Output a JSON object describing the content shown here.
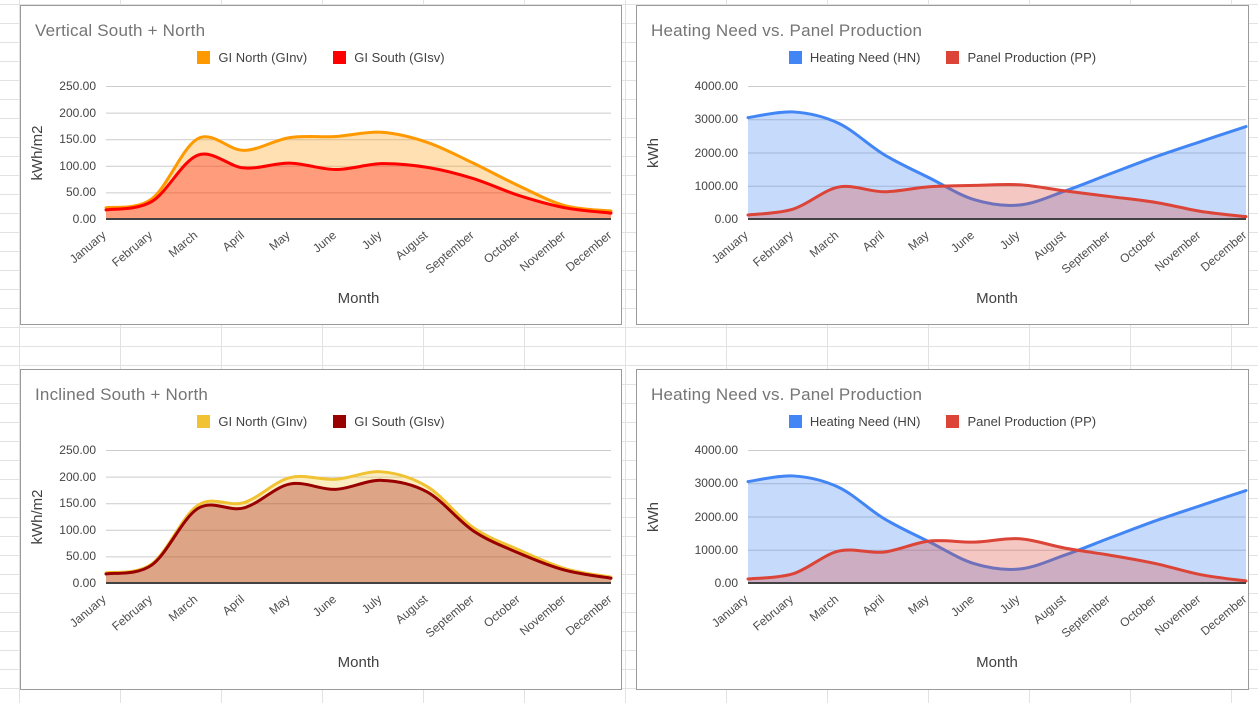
{
  "app": {
    "kind": "spreadsheet-embedded-charts",
    "background_grid_color": "#e2e2e2",
    "card_border_color": "#9a9a9a",
    "title_color": "#757575",
    "label_color": "#424242"
  },
  "chart_data": [
    {
      "type": "area",
      "title": "Vertical South + North",
      "xlabel": "Month",
      "ylabel": "kWh/m2",
      "categories": [
        "January",
        "February",
        "March",
        "April",
        "May",
        "June",
        "July",
        "August",
        "September",
        "October",
        "November",
        "December"
      ],
      "y_ticks": [
        "0.00",
        "50.00",
        "100.00",
        "150.00",
        "200.00",
        "250.00"
      ],
      "ylim": [
        0,
        250
      ],
      "grid": true,
      "legend_position": "top",
      "smooth": true,
      "series": [
        {
          "name": "GI North (GInv)",
          "color": "#FF9900",
          "fill_opacity": 0.3,
          "values": [
            21,
            38,
            151,
            129,
            153,
            155,
            163,
            144,
            105,
            62,
            25,
            15
          ]
        },
        {
          "name": "GI South (GIsv)",
          "color": "#FF0000",
          "fill_opacity": 0.3,
          "values": [
            17,
            33,
            120,
            96,
            105,
            93,
            104,
            97,
            76,
            44,
            21,
            11
          ]
        }
      ]
    },
    {
      "type": "area",
      "title": "Heating Need vs. Panel Production",
      "xlabel": "Month",
      "ylabel": "kWh",
      "categories": [
        "January",
        "February",
        "March",
        "April",
        "May",
        "June",
        "July",
        "August",
        "September",
        "October",
        "November",
        "December"
      ],
      "y_ticks": [
        "0.00",
        "1000.00",
        "2000.00",
        "3000.00",
        "4000.00"
      ],
      "ylim": [
        0,
        4000
      ],
      "grid": true,
      "legend_position": "top",
      "smooth": true,
      "series": [
        {
          "name": "Heating Need (HN)",
          "color": "#4285F4",
          "fill_opacity": 0.3,
          "values": [
            3050,
            3220,
            2880,
            1940,
            1240,
            580,
            420,
            840,
            1360,
            1870,
            2330,
            2780
          ]
        },
        {
          "name": "Panel Production (PP)",
          "color": "#DB4437",
          "fill_opacity": 0.3,
          "values": [
            120,
            300,
            960,
            820,
            970,
            1010,
            1030,
            845,
            675,
            500,
            230,
            70
          ]
        }
      ]
    },
    {
      "type": "area",
      "title": "Inclined South + North",
      "xlabel": "Month",
      "ylabel": "kWh/m2",
      "categories": [
        "January",
        "February",
        "March",
        "April",
        "May",
        "June",
        "July",
        "August",
        "September",
        "October",
        "November",
        "December"
      ],
      "y_ticks": [
        "0.00",
        "50.00",
        "100.00",
        "150.00",
        "200.00",
        "250.00"
      ],
      "ylim": [
        0,
        250
      ],
      "grid": true,
      "legend_position": "top",
      "smooth": true,
      "series": [
        {
          "name": "GI North (GInv)",
          "color": "#F1C232",
          "fill_opacity": 0.3,
          "values": [
            19,
            36,
            146,
            151,
            198,
            195,
            209,
            181,
            104,
            62,
            27,
            11
          ]
        },
        {
          "name": "GI South (GIsv)",
          "color": "#990000",
          "fill_opacity": 0.3,
          "values": [
            17,
            34,
            140,
            141,
            186,
            176,
            193,
            171,
            98,
            56,
            24,
            9
          ]
        }
      ]
    },
    {
      "type": "area",
      "title": "Heating Need vs. Panel Production",
      "xlabel": "Month",
      "ylabel": "kWh",
      "categories": [
        "January",
        "February",
        "March",
        "April",
        "May",
        "June",
        "July",
        "August",
        "September",
        "October",
        "November",
        "December"
      ],
      "y_ticks": [
        "0.00",
        "1000.00",
        "2000.00",
        "3000.00",
        "4000.00"
      ],
      "ylim": [
        0,
        4000
      ],
      "grid": true,
      "legend_position": "top",
      "smooth": true,
      "series": [
        {
          "name": "Heating Need (HN)",
          "color": "#4285F4",
          "fill_opacity": 0.3,
          "values": [
            3050,
            3220,
            2880,
            1940,
            1240,
            580,
            420,
            840,
            1360,
            1870,
            2330,
            2780
          ]
        },
        {
          "name": "Panel Production (PP)",
          "color": "#DB4437",
          "fill_opacity": 0.3,
          "values": [
            120,
            280,
            960,
            930,
            1260,
            1230,
            1330,
            1050,
            835,
            585,
            250,
            60
          ]
        }
      ]
    }
  ]
}
